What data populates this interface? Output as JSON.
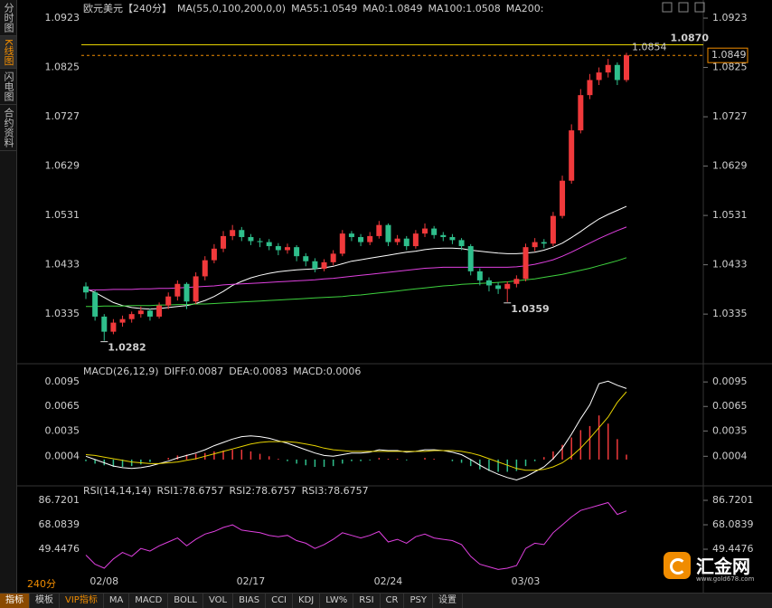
{
  "sidebar": [
    "分时图",
    "K线图",
    "闪电图",
    "合约资料"
  ],
  "toolbar": {
    "interval": "240分",
    "tabs": [
      "指标",
      "模板",
      "VIP指标",
      "MA",
      "MACD",
      "BOLL",
      "VOL",
      "BIAS",
      "CCI",
      "KDJ",
      "LW%",
      "RSI",
      "CR",
      "PSY",
      "设置"
    ]
  },
  "logo": {
    "name": "汇金网",
    "url": "www.gold678.com"
  },
  "chart_data": [
    {
      "type": "candlestick",
      "title": "欧元美元【240分】",
      "indicator": "MA(55,0,100,200,0,0)",
      "categories": [
        null,
        null,
        "02/08",
        null,
        null,
        null,
        null,
        null,
        null,
        null,
        null,
        null,
        null,
        null,
        null,
        null,
        null,
        null,
        "02/17",
        null,
        null,
        null,
        null,
        null,
        null,
        null,
        null,
        null,
        null,
        null,
        null,
        null,
        null,
        "02/24",
        null,
        null,
        null,
        null,
        null,
        null,
        null,
        null,
        null,
        null,
        null,
        null,
        null,
        null,
        "03/03",
        null,
        null,
        null,
        null,
        null,
        null,
        null,
        null,
        null,
        null,
        null
      ],
      "open": [
        1.039,
        1.0378,
        1.033,
        1.03,
        1.0318,
        1.0325,
        1.0335,
        1.0342,
        1.033,
        1.0352,
        1.037,
        1.0395,
        1.036,
        1.041,
        1.0442,
        1.0465,
        1.049,
        1.0502,
        1.0488,
        1.048,
        1.0478,
        1.047,
        1.0462,
        1.0468,
        1.045,
        1.044,
        1.0425,
        1.0438,
        1.0455,
        1.0495,
        1.0488,
        1.0478,
        1.049,
        1.0512,
        1.0478,
        1.0485,
        1.047,
        1.0495,
        1.0505,
        1.0492,
        1.0488,
        1.0482,
        1.047,
        1.042,
        1.0402,
        1.0392,
        1.0385,
        1.0395,
        1.0405,
        1.0468,
        1.0478,
        1.0475,
        1.053,
        1.06,
        1.07,
        1.077,
        1.08,
        1.0815,
        1.083,
        1.08
      ],
      "high": [
        1.0398,
        1.0382,
        1.0335,
        1.0325,
        1.0332,
        1.034,
        1.035,
        1.0346,
        1.0358,
        1.0378,
        1.0402,
        1.0398,
        1.0418,
        1.045,
        1.0474,
        1.05,
        1.0512,
        1.0508,
        1.0494,
        1.0486,
        1.0484,
        1.0476,
        1.0475,
        1.0472,
        1.0456,
        1.0446,
        1.0444,
        1.0462,
        1.0502,
        1.05,
        1.0494,
        1.0498,
        1.052,
        1.0515,
        1.0492,
        1.049,
        1.0502,
        1.0515,
        1.051,
        1.0498,
        1.0494,
        1.0486,
        1.0474,
        1.0426,
        1.0408,
        1.0398,
        1.04,
        1.0412,
        1.0475,
        1.0486,
        1.0484,
        1.0538,
        1.061,
        1.0712,
        1.0782,
        1.0812,
        1.0825,
        1.0842,
        1.0835,
        1.0854
      ],
      "low": [
        1.0365,
        1.0322,
        1.0282,
        1.0295,
        1.031,
        1.0318,
        1.0328,
        1.0322,
        1.0326,
        1.0345,
        1.0362,
        1.0345,
        1.0355,
        1.0402,
        1.0436,
        1.0458,
        1.0482,
        1.048,
        1.0472,
        1.0468,
        1.0462,
        1.0452,
        1.0455,
        1.044,
        1.043,
        1.0418,
        1.042,
        1.0432,
        1.045,
        1.048,
        1.047,
        1.0472,
        1.0485,
        1.047,
        1.0472,
        1.0462,
        1.0465,
        1.0488,
        1.0485,
        1.048,
        1.0474,
        1.0462,
        1.0412,
        1.0392,
        1.038,
        1.0375,
        1.0359,
        1.0388,
        1.04,
        1.046,
        1.0466,
        1.047,
        1.0525,
        1.0594,
        1.0694,
        1.0762,
        1.079,
        1.0805,
        1.079,
        1.0796
      ],
      "close": [
        1.0378,
        1.033,
        1.03,
        1.0318,
        1.0325,
        1.0335,
        1.0342,
        1.033,
        1.0352,
        1.037,
        1.0395,
        1.036,
        1.041,
        1.0442,
        1.0465,
        1.049,
        1.0502,
        1.0488,
        1.048,
        1.0478,
        1.047,
        1.0462,
        1.0468,
        1.045,
        1.044,
        1.0425,
        1.0438,
        1.0455,
        1.0495,
        1.0488,
        1.0478,
        1.049,
        1.0512,
        1.0478,
        1.0485,
        1.047,
        1.0495,
        1.0505,
        1.0492,
        1.0488,
        1.0482,
        1.047,
        1.042,
        1.0402,
        1.0392,
        1.0385,
        1.0395,
        1.0405,
        1.0468,
        1.0478,
        1.0475,
        1.053,
        1.06,
        1.07,
        1.077,
        1.08,
        1.0815,
        1.083,
        1.08,
        1.0849
      ],
      "up_color": "#f0393b",
      "down_color": "#2fbf8c",
      "series": [
        {
          "name": "MA55:1.0549",
          "color": "#ffffff",
          "values": [
            1.0385,
            1.0378,
            1.0368,
            1.0358,
            1.0352,
            1.0348,
            1.0346,
            1.0345,
            1.0346,
            1.0348,
            1.035,
            1.0352,
            1.0356,
            1.0362,
            1.037,
            1.038,
            1.0392,
            1.04,
            1.0407,
            1.0412,
            1.0416,
            1.0419,
            1.0421,
            1.0423,
            1.0424,
            1.0425,
            1.0427,
            1.043,
            1.0435,
            1.044,
            1.0443,
            1.0446,
            1.0449,
            1.0452,
            1.0455,
            1.0458,
            1.046,
            1.0463,
            1.0465,
            1.0466,
            1.0466,
            1.0465,
            1.0462,
            1.046,
            1.0458,
            1.0456,
            1.0455,
            1.0455,
            1.0456,
            1.0458,
            1.0462,
            1.0468,
            1.0476,
            1.0487,
            1.0499,
            1.0512,
            1.0524,
            1.0533,
            1.0541,
            1.0549
          ]
        },
        {
          "name": "MA100:1.0508",
          "color": "#e040e0",
          "values": [
            1.0383,
            1.0383,
            1.0383,
            1.0384,
            1.0384,
            1.0384,
            1.0385,
            1.0385,
            1.0386,
            1.0386,
            1.0387,
            1.0388,
            1.0389,
            1.039,
            1.0391,
            1.0393,
            1.0394,
            1.0395,
            1.0396,
            1.0397,
            1.0398,
            1.0399,
            1.04,
            1.0401,
            1.0402,
            1.0403,
            1.0405,
            1.0406,
            1.0408,
            1.041,
            1.0412,
            1.0414,
            1.0416,
            1.0418,
            1.042,
            1.0422,
            1.0424,
            1.0426,
            1.0427,
            1.0428,
            1.0428,
            1.0428,
            1.0428,
            1.0428,
            1.0428,
            1.0428,
            1.0428,
            1.0429,
            1.0431,
            1.0434,
            1.0438,
            1.0443,
            1.045,
            1.0458,
            1.0467,
            1.0476,
            1.0485,
            1.0493,
            1.0501,
            1.0508
          ]
        },
        {
          "name": "MA200:",
          "color": "#3ed23e",
          "values": [
            1.035,
            1.035,
            1.0351,
            1.0351,
            1.0351,
            1.0352,
            1.0352,
            1.0352,
            1.0353,
            1.0353,
            1.0354,
            1.0354,
            1.0355,
            1.0355,
            1.0356,
            1.0357,
            1.0358,
            1.0359,
            1.036,
            1.0361,
            1.0362,
            1.0363,
            1.0364,
            1.0365,
            1.0366,
            1.0367,
            1.0368,
            1.0369,
            1.037,
            1.0372,
            1.0373,
            1.0375,
            1.0377,
            1.0379,
            1.0381,
            1.0383,
            1.0385,
            1.0387,
            1.0389,
            1.0391,
            1.0392,
            1.0394,
            1.0395,
            1.0396,
            1.0397,
            1.0398,
            1.0399,
            1.0401,
            1.0403,
            1.0405,
            1.0408,
            1.0411,
            1.0414,
            1.0418,
            1.0422,
            1.0426,
            1.0431,
            1.0436,
            1.0441,
            1.0447
          ]
        }
      ],
      "legend_extra": [
        {
          "text": "MA0:1.0849",
          "color": "#e6d200"
        }
      ],
      "hline": {
        "value": 1.087,
        "label": "1.0870",
        "color": "#e6d200"
      },
      "last_price": {
        "value": 1.0849,
        "color": "#f08c00"
      },
      "marked_high": 1.0854,
      "marked_high_color": "#f05a3a",
      "marked_lows": [
        1.0282,
        1.0359
      ],
      "marked_low_color": "#5fd0a8",
      "ylim": [
        1.024,
        1.095
      ],
      "yticks": [
        1.0923,
        1.0825,
        1.0727,
        1.0629,
        1.0531,
        1.0433,
        1.0335
      ]
    },
    {
      "type": "macd",
      "title": "MACD(26,12,9)",
      "series": [
        {
          "name": "DIFF:0.0087",
          "color": "#ffffff",
          "values": [
            0.0004,
            0.0,
            -0.0004,
            -0.0008,
            -0.001,
            -0.0011,
            -0.001,
            -0.0008,
            -0.0005,
            -0.0002,
            0.0002,
            0.0005,
            0.0008,
            0.0012,
            0.0017,
            0.0021,
            0.0025,
            0.0028,
            0.0029,
            0.0028,
            0.0026,
            0.0023,
            0.002,
            0.0016,
            0.0012,
            0.0008,
            0.0005,
            0.0004,
            0.0006,
            0.0008,
            0.0008,
            0.0009,
            0.0012,
            0.0011,
            0.0011,
            0.0009,
            0.001,
            0.0012,
            0.0012,
            0.0011,
            0.0009,
            0.0006,
            0.0,
            -0.0007,
            -0.0013,
            -0.0018,
            -0.0022,
            -0.0025,
            -0.0021,
            -0.0015,
            -0.0009,
            0.0001,
            0.0014,
            0.0031,
            0.005,
            0.0067,
            0.0093,
            0.0096,
            0.0091,
            0.0087
          ]
        },
        {
          "name": "DEA:0.0083",
          "color": "#e6d200",
          "values": [
            0.0006,
            0.0005,
            0.0003,
            0.0001,
            -0.0001,
            -0.0003,
            -0.0004,
            -0.0005,
            -0.0005,
            -0.0004,
            -0.0003,
            -0.0001,
            0.0001,
            0.0004,
            0.0007,
            0.001,
            0.0013,
            0.0016,
            0.0019,
            0.0021,
            0.0022,
            0.0022,
            0.0022,
            0.0021,
            0.0019,
            0.0017,
            0.0014,
            0.0012,
            0.0011,
            0.001,
            0.001,
            0.001,
            0.001,
            0.001,
            0.001,
            0.001,
            0.001,
            0.001,
            0.0011,
            0.0011,
            0.0011,
            0.001,
            0.0008,
            0.0005,
            0.0001,
            -0.0003,
            -0.0007,
            -0.0011,
            -0.0013,
            -0.0013,
            -0.0012,
            -0.0009,
            -0.0004,
            0.0004,
            0.0014,
            0.0026,
            0.0039,
            0.0052,
            0.007,
            0.0083
          ]
        }
      ],
      "histogram": {
        "name": "MACD:0.0006",
        "label_color": "#e040e0",
        "up_color": "#f0393b",
        "down_color": "#2fbf8c",
        "values": [
          -0.0002,
          -0.0005,
          -0.0007,
          -0.0009,
          -0.0009,
          -0.0008,
          -0.0006,
          -0.0003,
          0.0,
          0.0002,
          0.0005,
          0.0006,
          0.0007,
          0.0008,
          0.001,
          0.0011,
          0.0012,
          0.0012,
          0.001,
          0.0007,
          0.0004,
          0.0001,
          -0.0002,
          -0.0005,
          -0.0007,
          -0.0009,
          -0.0009,
          -0.0008,
          -0.0005,
          -0.0002,
          -0.0002,
          -0.0001,
          0.0002,
          0.0001,
          0.0001,
          -0.0001,
          0.0,
          0.0002,
          0.0001,
          0.0,
          -0.0002,
          -0.0004,
          -0.0008,
          -0.0012,
          -0.0014,
          -0.0015,
          -0.0015,
          -0.0014,
          -0.0008,
          -0.0002,
          0.0003,
          0.001,
          0.0018,
          0.0027,
          0.0036,
          0.0041,
          0.0054,
          0.0044,
          0.0025,
          0.0006
        ]
      },
      "ylim": [
        -0.003,
        0.0114
      ],
      "yticks": [
        0.0095,
        0.0065,
        0.0035,
        0.0004
      ]
    },
    {
      "type": "line",
      "title": "RSI(14,14,14)",
      "legend_extra": [
        {
          "text": "RSI1:78.6757",
          "color": "#ffffff"
        },
        {
          "text": "RSI2:78.6757",
          "color": "#e6d200"
        }
      ],
      "series": [
        {
          "name": "RSI3:78.6757",
          "color": "#e040e0",
          "values": [
            45,
            38,
            35,
            42,
            47,
            44,
            50,
            48,
            52,
            55,
            58,
            52,
            57,
            61,
            63,
            66,
            68,
            64,
            63,
            62,
            60,
            59,
            60,
            56,
            54,
            50,
            53,
            57,
            62,
            60,
            58,
            60,
            63,
            55,
            57,
            54,
            59,
            61,
            58,
            57,
            56,
            53,
            44,
            38,
            36,
            34,
            35,
            37,
            50,
            54,
            53,
            62,
            68,
            74,
            79,
            81,
            83,
            85,
            76,
            78.6757
          ]
        }
      ],
      "ylim": [
        26.7,
        95.7
      ],
      "yticks": [
        86.7201,
        68.0839,
        49.4476
      ]
    }
  ]
}
